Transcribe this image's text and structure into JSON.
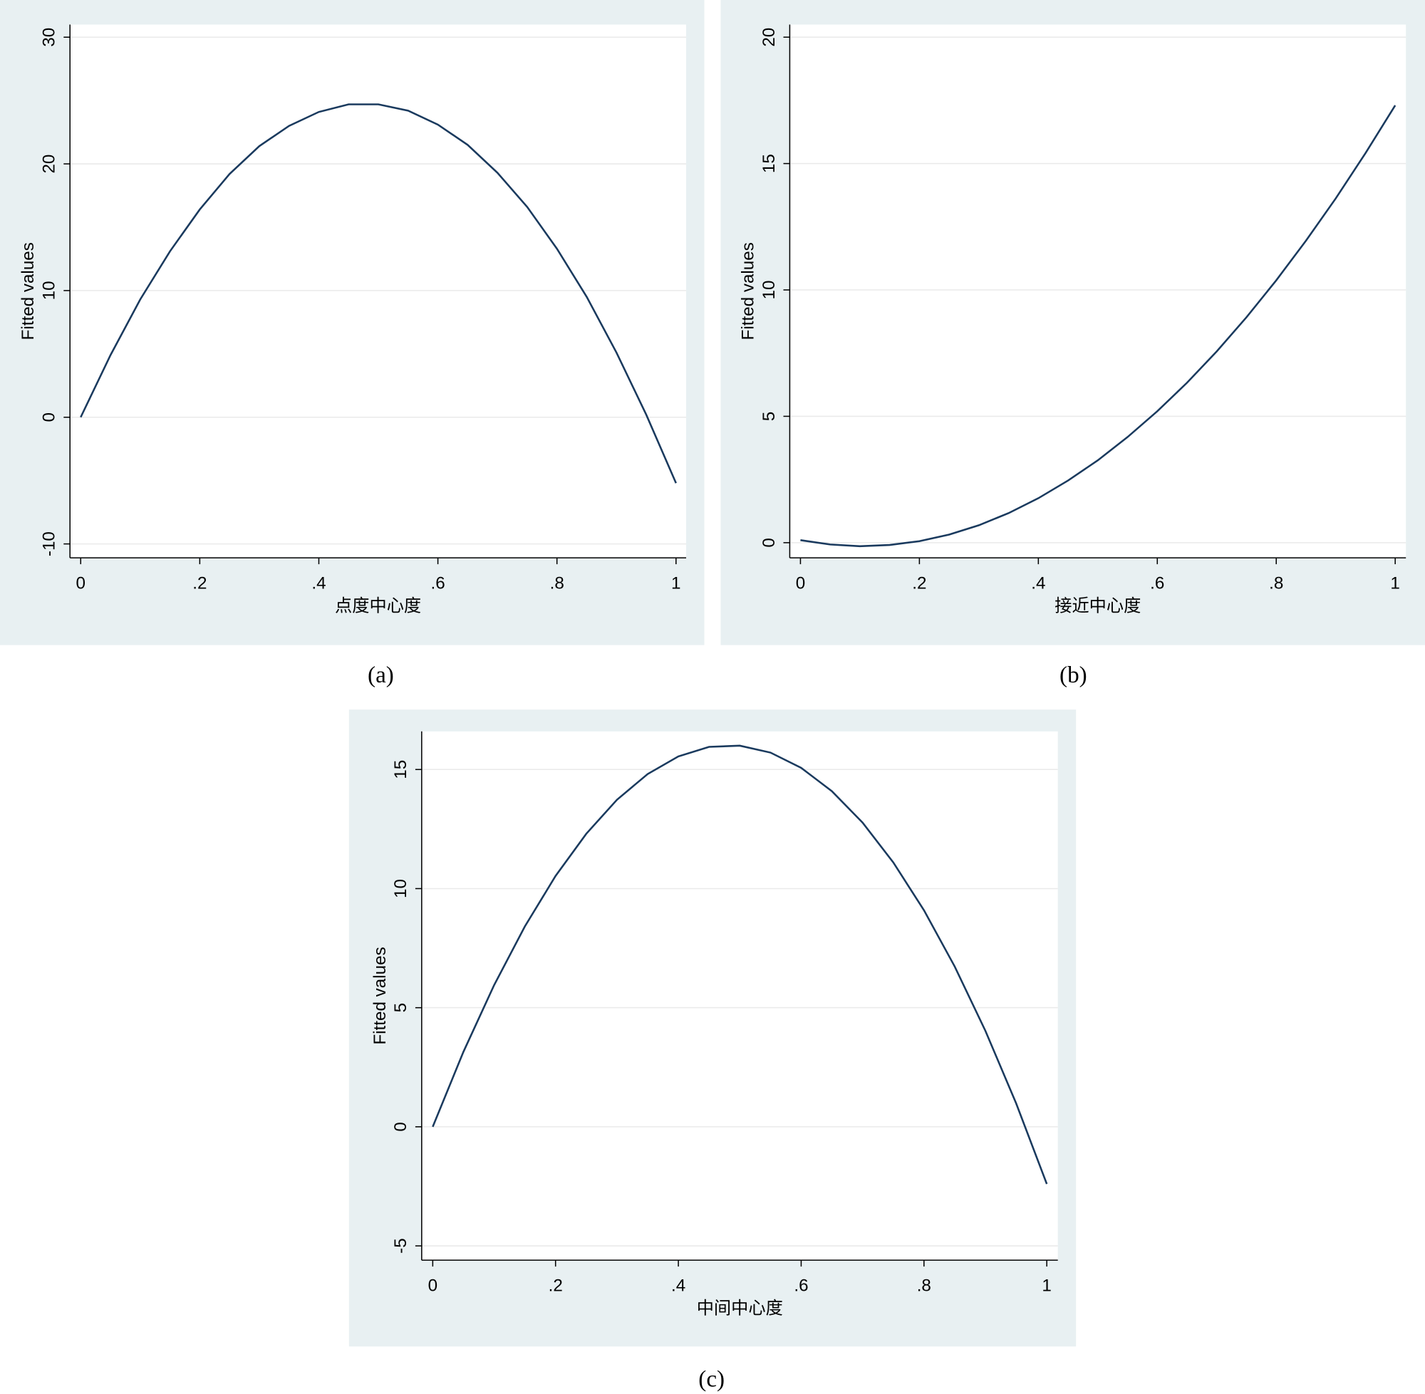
{
  "chart_data": [
    {
      "type": "line",
      "caption": "(a)",
      "x_label": "点度中心度",
      "y_label": "Fitted values",
      "color": "#1a3a5e",
      "grid": true,
      "x": [
        0,
        0.05,
        0.1,
        0.15,
        0.2,
        0.25,
        0.3,
        0.35,
        0.4,
        0.45,
        0.5,
        0.55,
        0.6,
        0.65,
        0.7,
        0.75,
        0.8,
        0.85,
        0.9,
        0.95,
        1
      ],
      "values": [
        0,
        4.9,
        9.3,
        13.1,
        16.4,
        19.2,
        21.4,
        23.0,
        24.1,
        24.7,
        24.7,
        24.2,
        23.1,
        21.5,
        19.3,
        16.6,
        13.3,
        9.5,
        5.1,
        0.2,
        -5.2
      ],
      "xlim": [
        -0.018,
        1.017
      ],
      "ylim": [
        -11.1,
        31
      ],
      "xticks": [
        0,
        {
          "value": 0.2,
          "label": ".2"
        },
        {
          "value": 0.4,
          "label": ".4"
        },
        {
          "value": 0.6,
          "label": ".6"
        },
        {
          "value": 0.8,
          "label": ".8"
        },
        1
      ],
      "yticks": [
        -10,
        0,
        10,
        20,
        30
      ]
    },
    {
      "type": "line",
      "caption": "(b)",
      "x_label": "接近中心度",
      "y_label": "Fitted values",
      "color": "#1a3a5e",
      "grid": true,
      "x": [
        0,
        0.05,
        0.1,
        0.15,
        0.2,
        0.25,
        0.3,
        0.35,
        0.4,
        0.45,
        0.5,
        0.55,
        0.6,
        0.65,
        0.7,
        0.75,
        0.8,
        0.85,
        0.9,
        0.95,
        1
      ],
      "values": [
        0.1,
        -0.07,
        -0.14,
        -0.09,
        0.06,
        0.32,
        0.69,
        1.17,
        1.76,
        2.46,
        3.26,
        4.18,
        5.2,
        6.33,
        7.57,
        8.92,
        10.38,
        11.95,
        13.62,
        15.41,
        17.3
      ],
      "xlim": [
        -0.018,
        1.018
      ],
      "ylim": [
        -0.6,
        20.5
      ],
      "xticks": [
        0,
        {
          "value": 0.2,
          "label": ".2"
        },
        {
          "value": 0.4,
          "label": ".4"
        },
        {
          "value": 0.6,
          "label": ".6"
        },
        {
          "value": 0.8,
          "label": ".8"
        },
        1
      ],
      "yticks": [
        0,
        5,
        10,
        15,
        20
      ]
    },
    {
      "type": "line",
      "caption": "(c)",
      "x_label": "中间中心度",
      "y_label": "Fitted values",
      "color": "#1a3a5e",
      "grid": true,
      "x": [
        0,
        0.05,
        0.1,
        0.15,
        0.2,
        0.25,
        0.3,
        0.35,
        0.4,
        0.45,
        0.5,
        0.55,
        0.6,
        0.65,
        0.7,
        0.75,
        0.8,
        0.85,
        0.9,
        0.95,
        1
      ],
      "values": [
        0,
        3.15,
        5.95,
        8.41,
        10.53,
        12.3,
        13.73,
        14.81,
        15.55,
        15.95,
        16.0,
        15.71,
        15.07,
        14.09,
        12.77,
        11.1,
        9.09,
        6.73,
        4.03,
        0.99,
        -2.4
      ],
      "xlim": [
        -0.018,
        1.018
      ],
      "ylim": [
        -5.6,
        16.6
      ],
      "xticks": [
        0,
        {
          "value": 0.2,
          "label": ".2"
        },
        {
          "value": 0.4,
          "label": ".4"
        },
        {
          "value": 0.6,
          "label": ".6"
        },
        {
          "value": 0.8,
          "label": ".8"
        },
        1
      ],
      "yticks": [
        -5,
        0,
        5,
        10,
        15
      ]
    }
  ]
}
